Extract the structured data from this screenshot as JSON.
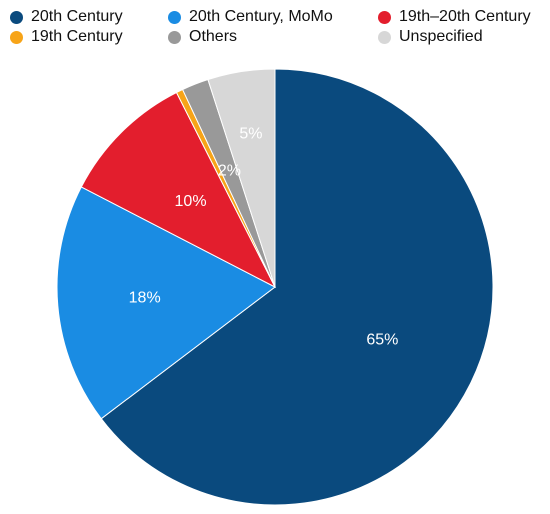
{
  "chart_data": {
    "type": "pie",
    "title": "",
    "legend_position": "top",
    "start_angle_deg": 0,
    "direction": "clockwise",
    "slices": [
      {
        "label": "20th Century",
        "value": 65,
        "display": "65%",
        "color": "#0a4a7e"
      },
      {
        "label": "20th Century, MoMo",
        "value": 18,
        "display": "18%",
        "color": "#1a8ce3"
      },
      {
        "label": "19th–20th Century",
        "value": 10,
        "display": "10%",
        "color": "#e31e2d"
      },
      {
        "label": "19th Century",
        "value": 0.5,
        "display": "",
        "color": "#f7a418"
      },
      {
        "label": "Others",
        "value": 2,
        "display": "2%",
        "color": "#999999"
      },
      {
        "label": "Unspecified",
        "value": 5,
        "display": "5%",
        "color": "#d7d7d7"
      }
    ]
  }
}
